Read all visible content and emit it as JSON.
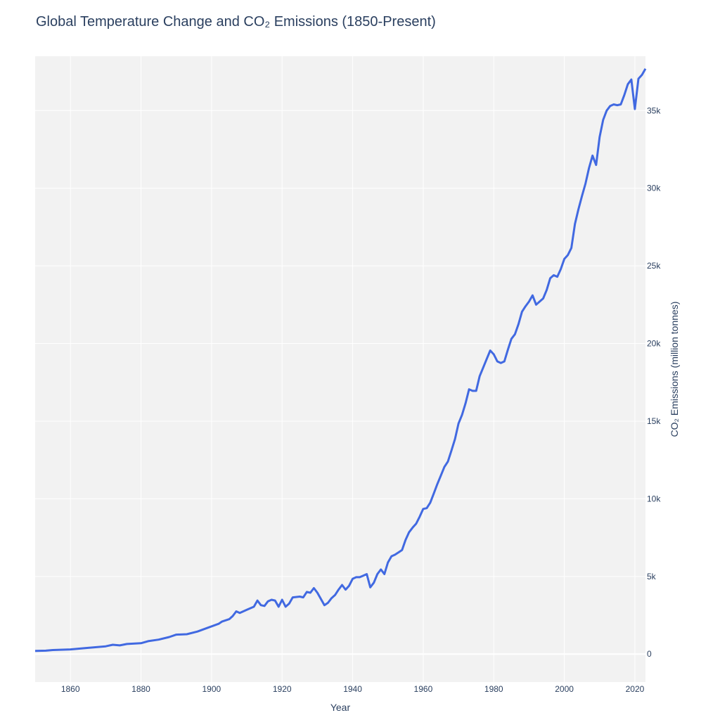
{
  "chart_data": {
    "type": "line",
    "title": "Global Temperature Change and CO₂ Emissions (1850-Present)",
    "xlabel": "Year",
    "ylabel": "CO₂ Emissions (million tonnes)",
    "xlim": [
      1850,
      2023
    ],
    "ylim": [
      -1800,
      38500
    ],
    "x_ticks": [
      1860,
      1880,
      1900,
      1920,
      1940,
      1960,
      1980,
      2000,
      2020
    ],
    "y_ticks": [
      0,
      5000,
      10000,
      15000,
      20000,
      25000,
      30000,
      35000
    ],
    "y_tick_labels": [
      "0",
      "5k",
      "10k",
      "15k",
      "20k",
      "25k",
      "30k",
      "35k"
    ],
    "grid": true,
    "y_axis_side": "right",
    "series": [
      {
        "color": "#4169e1",
        "points": [
          [
            1850,
            200
          ],
          [
            1853,
            220
          ],
          [
            1855,
            260
          ],
          [
            1860,
            300
          ],
          [
            1865,
            400
          ],
          [
            1870,
            500
          ],
          [
            1872,
            600
          ],
          [
            1874,
            560
          ],
          [
            1876,
            650
          ],
          [
            1880,
            700
          ],
          [
            1882,
            830
          ],
          [
            1885,
            930
          ],
          [
            1888,
            1100
          ],
          [
            1890,
            1250
          ],
          [
            1893,
            1280
          ],
          [
            1896,
            1450
          ],
          [
            1899,
            1700
          ],
          [
            1902,
            1950
          ],
          [
            1903,
            2100
          ],
          [
            1905,
            2250
          ],
          [
            1906,
            2450
          ],
          [
            1907,
            2750
          ],
          [
            1908,
            2650
          ],
          [
            1910,
            2850
          ],
          [
            1912,
            3050
          ],
          [
            1913,
            3450
          ],
          [
            1914,
            3150
          ],
          [
            1915,
            3100
          ],
          [
            1916,
            3400
          ],
          [
            1917,
            3500
          ],
          [
            1918,
            3450
          ],
          [
            1919,
            3050
          ],
          [
            1920,
            3500
          ],
          [
            1921,
            3050
          ],
          [
            1922,
            3250
          ],
          [
            1923,
            3650
          ],
          [
            1925,
            3700
          ],
          [
            1926,
            3650
          ],
          [
            1927,
            4000
          ],
          [
            1928,
            3950
          ],
          [
            1929,
            4250
          ],
          [
            1930,
            3950
          ],
          [
            1932,
            3150
          ],
          [
            1933,
            3300
          ],
          [
            1934,
            3600
          ],
          [
            1935,
            3800
          ],
          [
            1936,
            4150
          ],
          [
            1937,
            4450
          ],
          [
            1938,
            4150
          ],
          [
            1939,
            4400
          ],
          [
            1940,
            4850
          ],
          [
            1941,
            4950
          ],
          [
            1942,
            4950
          ],
          [
            1943,
            5050
          ],
          [
            1944,
            5150
          ],
          [
            1945,
            4300
          ],
          [
            1946,
            4600
          ],
          [
            1947,
            5150
          ],
          [
            1948,
            5450
          ],
          [
            1949,
            5150
          ],
          [
            1950,
            5900
          ],
          [
            1951,
            6300
          ],
          [
            1952,
            6400
          ],
          [
            1953,
            6550
          ],
          [
            1954,
            6700
          ],
          [
            1955,
            7350
          ],
          [
            1956,
            7850
          ],
          [
            1957,
            8150
          ],
          [
            1958,
            8400
          ],
          [
            1959,
            8850
          ],
          [
            1960,
            9350
          ],
          [
            1961,
            9400
          ],
          [
            1962,
            9750
          ],
          [
            1963,
            10350
          ],
          [
            1964,
            10950
          ],
          [
            1965,
            11500
          ],
          [
            1966,
            12050
          ],
          [
            1967,
            12400
          ],
          [
            1968,
            13100
          ],
          [
            1969,
            13850
          ],
          [
            1970,
            14850
          ],
          [
            1971,
            15400
          ],
          [
            1972,
            16150
          ],
          [
            1973,
            17050
          ],
          [
            1974,
            16950
          ],
          [
            1975,
            16950
          ],
          [
            1976,
            17900
          ],
          [
            1977,
            18450
          ],
          [
            1978,
            19000
          ],
          [
            1979,
            19550
          ],
          [
            1980,
            19300
          ],
          [
            1981,
            18850
          ],
          [
            1982,
            18750
          ],
          [
            1983,
            18850
          ],
          [
            1984,
            19600
          ],
          [
            1985,
            20300
          ],
          [
            1986,
            20600
          ],
          [
            1987,
            21250
          ],
          [
            1988,
            22050
          ],
          [
            1989,
            22400
          ],
          [
            1990,
            22700
          ],
          [
            1991,
            23100
          ],
          [
            1992,
            22500
          ],
          [
            1993,
            22700
          ],
          [
            1994,
            22900
          ],
          [
            1995,
            23450
          ],
          [
            1996,
            24200
          ],
          [
            1997,
            24400
          ],
          [
            1998,
            24300
          ],
          [
            1999,
            24800
          ],
          [
            2000,
            25450
          ],
          [
            2001,
            25700
          ],
          [
            2002,
            26150
          ],
          [
            2003,
            27700
          ],
          [
            2004,
            28650
          ],
          [
            2005,
            29500
          ],
          [
            2006,
            30300
          ],
          [
            2007,
            31300
          ],
          [
            2008,
            32100
          ],
          [
            2009,
            31500
          ],
          [
            2010,
            33300
          ],
          [
            2011,
            34400
          ],
          [
            2012,
            35000
          ],
          [
            2013,
            35300
          ],
          [
            2014,
            35400
          ],
          [
            2015,
            35350
          ],
          [
            2016,
            35400
          ],
          [
            2017,
            36000
          ],
          [
            2018,
            36700
          ],
          [
            2019,
            37000
          ],
          [
            2020,
            35100
          ],
          [
            2021,
            37050
          ],
          [
            2022,
            37300
          ],
          [
            2023,
            37700
          ]
        ]
      }
    ]
  }
}
